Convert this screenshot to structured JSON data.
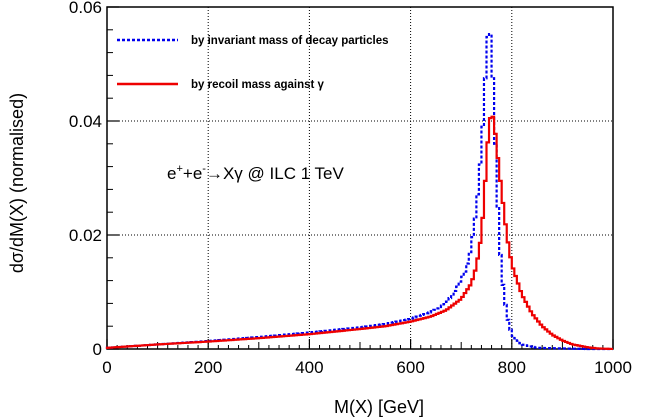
{
  "chart_data": {
    "type": "line",
    "xlabel": "M(X) [GeV]",
    "ylabel": "dσ/dM(X) (normalised)",
    "xlim": [
      0,
      1000
    ],
    "ylim": [
      0,
      0.06
    ],
    "x_ticks": [
      "0",
      "200",
      "400",
      "600",
      "800",
      "1000"
    ],
    "y_ticks": [
      "0",
      "0.02",
      "0.04",
      "0.06"
    ],
    "grid": true,
    "legend_position": "top-left",
    "annotation": {
      "e1": "e",
      "sup1": "+",
      "plus": "+e",
      "sup2": "-",
      "process": "→Xγ  @  ILC 1 TeV"
    },
    "series": [
      {
        "name": "by invariant mass of decay particles",
        "color": "#0000ee",
        "style": "dotted",
        "x": [
          0,
          100,
          200,
          300,
          400,
          500,
          550,
          600,
          640,
          670,
          690,
          710,
          720,
          730,
          740,
          745,
          750,
          755,
          760,
          765,
          770,
          775,
          780,
          790,
          800,
          820,
          850,
          900,
          950,
          1000
        ],
        "y": [
          0.0002,
          0.0008,
          0.0014,
          0.0021,
          0.0029,
          0.0038,
          0.0044,
          0.0053,
          0.0065,
          0.008,
          0.0105,
          0.014,
          0.018,
          0.0245,
          0.035,
          0.043,
          0.052,
          0.0575,
          0.053,
          0.042,
          0.03,
          0.02,
          0.013,
          0.006,
          0.0025,
          0.0008,
          0.0002,
          0.0001,
          0.0,
          0.0
        ]
      },
      {
        "name": "by recoil mass against γ",
        "color": "#ee0000",
        "style": "solid",
        "x": [
          0,
          100,
          200,
          300,
          400,
          500,
          550,
          600,
          640,
          670,
          700,
          720,
          730,
          740,
          745,
          750,
          755,
          760,
          765,
          770,
          780,
          790,
          800,
          820,
          840,
          860,
          880,
          900,
          920,
          950,
          970,
          1000
        ],
        "y": [
          0.0002,
          0.0008,
          0.0013,
          0.0019,
          0.0026,
          0.0035,
          0.004,
          0.0048,
          0.0057,
          0.0068,
          0.0088,
          0.0115,
          0.0145,
          0.02,
          0.026,
          0.033,
          0.0395,
          0.0415,
          0.04,
          0.0355,
          0.0275,
          0.02,
          0.0148,
          0.0095,
          0.0062,
          0.004,
          0.0025,
          0.0015,
          0.0008,
          0.0003,
          0.0001,
          0.0
        ]
      }
    ]
  }
}
